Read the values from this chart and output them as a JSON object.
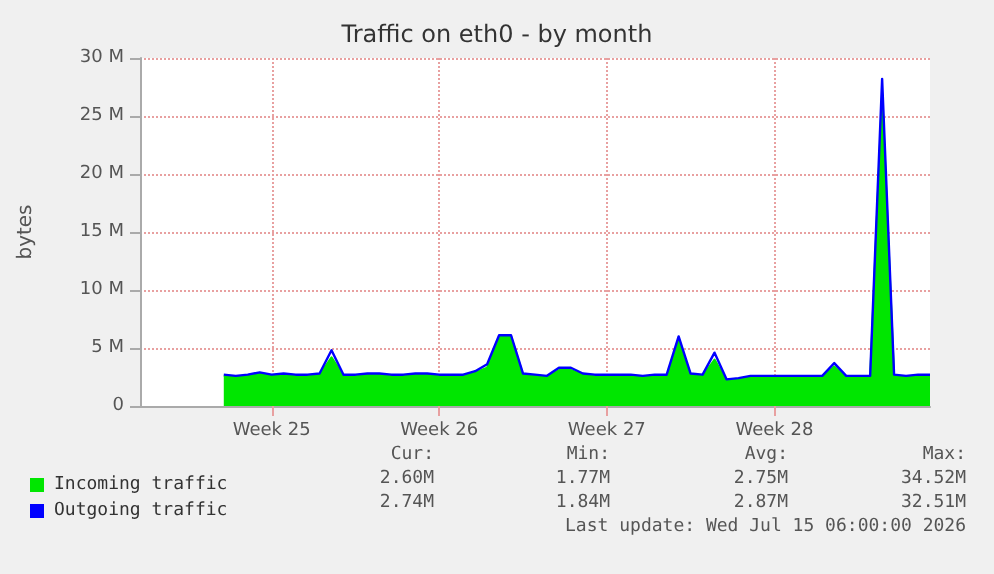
{
  "chart_data": {
    "type": "area",
    "title": "Traffic on eth0 - by month",
    "ylabel": "bytes",
    "categories": [
      null,
      null,
      null,
      null,
      null,
      null,
      null,
      null,
      null,
      null,
      null,
      "Week 25",
      null,
      null,
      null,
      null,
      null,
      null,
      null,
      null,
      null,
      null,
      null,
      null,
      null,
      "Week 26",
      null,
      null,
      null,
      null,
      null,
      null,
      null,
      null,
      null,
      null,
      null,
      null,
      null,
      "Week 27",
      null,
      null,
      null,
      null,
      null,
      null,
      null,
      null,
      null,
      null,
      null,
      null,
      null,
      "Week 28",
      null,
      null,
      null,
      null,
      null,
      null,
      null,
      null,
      null,
      null,
      null,
      null,
      null
    ],
    "series": [
      {
        "name": "Incoming traffic",
        "color": "#00e600",
        "values": [
          null,
          null,
          null,
          null,
          null,
          null,
          null,
          2600000,
          2500000,
          2600000,
          2800000,
          2600000,
          2700000,
          2600000,
          2600000,
          2700000,
          4200000,
          2600000,
          2600000,
          2700000,
          2700000,
          2600000,
          2600000,
          2700000,
          2700000,
          2600000,
          2600000,
          2600000,
          2900000,
          3300000,
          6000000,
          6000000,
          2700000,
          2600000,
          2500000,
          3100000,
          3100000,
          2700000,
          2600000,
          2600000,
          2600000,
          2600000,
          2500000,
          2600000,
          2600000,
          5800000,
          2700000,
          2600000,
          4000000,
          2200000,
          2300000,
          2500000,
          2500000,
          2500000,
          2500000,
          2500000,
          2500000,
          2500000,
          3400000,
          2500000,
          2500000,
          2500000,
          27000000,
          2600000,
          2500000,
          2600000,
          2600000
        ]
      },
      {
        "name": "Outgoing traffic",
        "type": "line",
        "color": "#0000ff",
        "values": [
          null,
          null,
          null,
          null,
          null,
          null,
          null,
          2700000,
          2600000,
          2700000,
          2900000,
          2700000,
          2800000,
          2700000,
          2700000,
          2800000,
          4800000,
          2700000,
          2700000,
          2800000,
          2800000,
          2700000,
          2700000,
          2800000,
          2800000,
          2700000,
          2700000,
          2700000,
          3000000,
          3600000,
          6100000,
          6100000,
          2800000,
          2700000,
          2600000,
          3300000,
          3300000,
          2800000,
          2700000,
          2700000,
          2700000,
          2700000,
          2600000,
          2700000,
          2700000,
          6000000,
          2800000,
          2700000,
          4600000,
          2300000,
          2400000,
          2600000,
          2600000,
          2600000,
          2600000,
          2600000,
          2600000,
          2600000,
          3700000,
          2600000,
          2600000,
          2600000,
          28200000,
          2700000,
          2600000,
          2700000,
          2700000
        ]
      }
    ],
    "ylim": [
      0,
      30000000
    ],
    "yticks": [
      0,
      {
        "value": 5000000,
        "label": "5 M"
      },
      {
        "value": 10000000,
        "label": "10 M"
      },
      {
        "value": 15000000,
        "label": "15 M"
      },
      {
        "value": 20000000,
        "label": "20 M"
      },
      {
        "value": 25000000,
        "label": "25 M"
      },
      {
        "value": 30000000,
        "label": "30 M"
      }
    ],
    "grid": true,
    "legend": "bottom left",
    "marker": "none",
    "annotations": [
      "Cur:",
      "Min:",
      "Avg:",
      "Max:",
      "2.60M",
      "1.77M",
      "2.75M",
      "34.52M",
      "2.74M",
      "1.84M",
      "2.87M",
      "32.51M",
      "Last update: Wed Jul 15 06:00:00 2026"
    ]
  }
}
